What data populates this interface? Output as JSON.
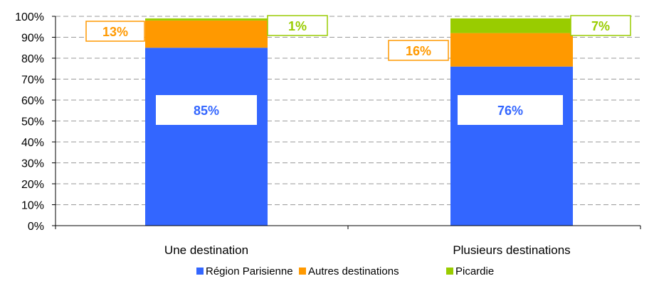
{
  "chart_data": {
    "type": "bar",
    "stacked": true,
    "percent": true,
    "categories": [
      "Une destination",
      "Plusieurs destinations"
    ],
    "series": [
      {
        "name": "Région Parisienne",
        "values": [
          85,
          76
        ],
        "labels": [
          "85%",
          "76%"
        ],
        "color": "#3366FF"
      },
      {
        "name": "Autres destinations",
        "values": [
          13,
          16
        ],
        "labels": [
          "13%",
          "16%"
        ],
        "color": "#FF9900"
      },
      {
        "name": "Picardie",
        "values": [
          1,
          7
        ],
        "labels": [
          "1%",
          "7%"
        ],
        "color": "#99CC00"
      }
    ],
    "yticks": [
      "0%",
      "10%",
      "20%",
      "30%",
      "40%",
      "50%",
      "60%",
      "70%",
      "80%",
      "90%",
      "100%"
    ],
    "ylim": [
      0,
      100
    ],
    "grid": true,
    "legend": "bottom"
  }
}
